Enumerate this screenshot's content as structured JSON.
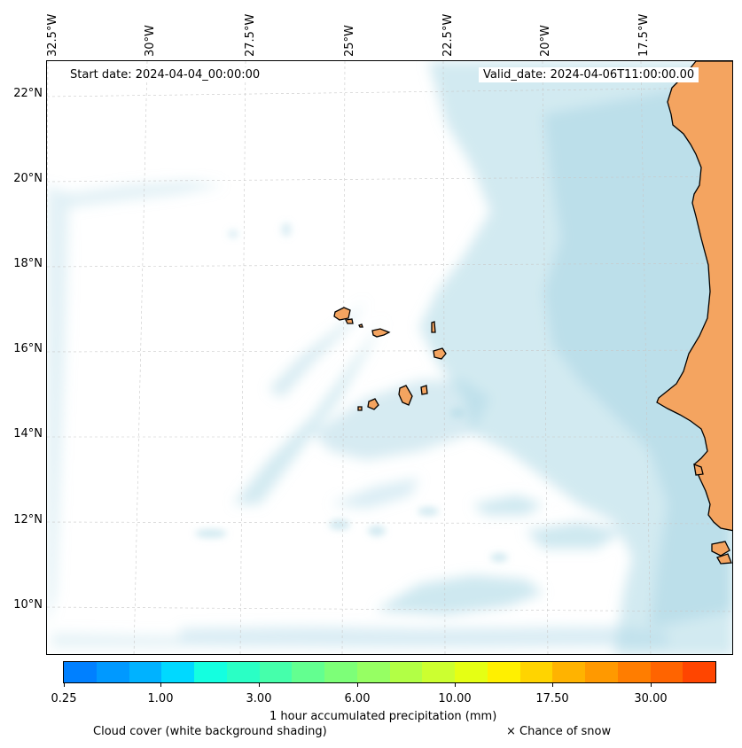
{
  "map": {
    "start_date": "Start date: 2024-04-04_00:00:00",
    "valid_date": "Valid_date: 2024-04-06T11:00:00.00",
    "longitude_labels": [
      "32.5°W",
      "30°W",
      "27.5°W",
      "25°W",
      "22.5°W",
      "20°W",
      "17.5°W"
    ],
    "latitude_labels": [
      "22°N",
      "20°N",
      "18°N",
      "16°N",
      "14°N",
      "12°N",
      "10°N"
    ],
    "colors": {
      "cloud": "#add8e6",
      "land": "#f4a460",
      "coastline": "#000000",
      "gridline": "#c8c8c8"
    }
  },
  "colorbar": {
    "colors": [
      "#0080ff",
      "#0099ff",
      "#00b2ff",
      "#00d9ff",
      "#14ffe0",
      "#2affc5",
      "#45ffab",
      "#63ff90",
      "#7dff78",
      "#96ff63",
      "#b2ff45",
      "#ccff30",
      "#e5ff14",
      "#fff000",
      "#ffd400",
      "#ffb300",
      "#ff9900",
      "#ff7d00",
      "#ff6400",
      "#ff4500"
    ],
    "tick_labels": [
      "0.25",
      "1.00",
      "3.00",
      "6.00",
      "10.00",
      "17.50",
      "30.00"
    ],
    "label": "1 hour accumulated precipitation (mm)"
  },
  "legend": {
    "cloud_cover": "Cloud cover (white background shading)",
    "snow": "× Chance of snow"
  }
}
